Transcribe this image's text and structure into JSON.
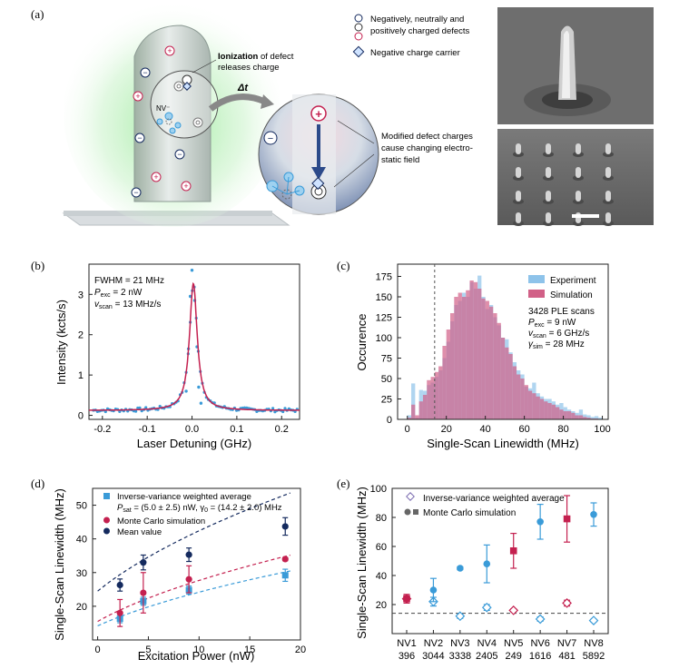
{
  "panel_labels": {
    "a": "(a)",
    "b": "(b)",
    "c": "(c)",
    "d": "(d)",
    "e": "(e)"
  },
  "panel_a": {
    "legend": [
      "Negatively, neutrally and",
      "positively charged defects",
      "Negative charge carrier"
    ],
    "callout_1": [
      "Ionization of defect",
      "releases charge"
    ],
    "callout_1_bold": "Ionization",
    "callout_2": [
      "Modified defect charges",
      "cause changing electro-",
      "static field"
    ],
    "delta_t": "Δt",
    "nv_label": "NV⁻"
  },
  "chart_data": [
    {
      "id": "b",
      "type": "scatter",
      "xlabel": "Laser Detuning (GHz)",
      "ylabel": "Intensity (kcts/s)",
      "xlim": [
        -0.23,
        0.24
      ],
      "ylim": [
        -0.1,
        3.75
      ],
      "xticks": [
        "-0.2",
        "-0.1",
        "0.0",
        "0.1",
        "0.2"
      ],
      "yticks": [
        "0",
        "1",
        "2",
        "3"
      ],
      "annotations": [
        "FWHM = 21 MHz",
        "P_exc = 2 nW",
        "v_scan = 13 MHz/s"
      ],
      "fit": {
        "type": "lorentzian",
        "center": 0.003,
        "fwhm": 0.021,
        "amplitude": 3.15,
        "offset": 0.12
      }
    },
    {
      "id": "c",
      "type": "bar",
      "xlabel": "Single-Scan Linewidth (MHz)",
      "ylabel": "Occurence",
      "xlim": [
        -5,
        103
      ],
      "ylim": [
        0,
        190
      ],
      "xticks": [
        "0",
        "20",
        "40",
        "60",
        "80",
        "100"
      ],
      "yticks": [
        "0",
        "25",
        "50",
        "75",
        "100",
        "125",
        "150",
        "175"
      ],
      "bin_width": 2,
      "bin_start": 0,
      "vline": 14,
      "series": [
        {
          "name": "Experiment",
          "color": "#8ec3ea",
          "values": [
            5,
            44,
            2,
            36,
            35,
            42,
            45,
            52,
            60,
            75,
            95,
            120,
            140,
            145,
            155,
            150,
            168,
            160,
            176,
            150,
            135,
            140,
            125,
            115,
            100,
            98,
            82,
            70,
            60,
            55,
            40,
            38,
            45,
            32,
            28,
            25,
            25,
            22,
            18,
            20,
            15,
            12,
            10,
            8,
            12,
            6,
            5,
            3,
            4,
            2
          ]
        },
        {
          "name": "Simulation",
          "color": "#d16087",
          "values": [
            2,
            18,
            5,
            22,
            30,
            48,
            52,
            58,
            65,
            90,
            110,
            130,
            150,
            155,
            150,
            158,
            170,
            168,
            160,
            148,
            145,
            138,
            130,
            118,
            100,
            88,
            80,
            65,
            55,
            50,
            42,
            35,
            32,
            28,
            25,
            22,
            20,
            18,
            15,
            12,
            10,
            10,
            8,
            5,
            5,
            3,
            2,
            1,
            1,
            0
          ]
        }
      ],
      "annotations": [
        "3428 PLE scans",
        "P_exc = 9 nW",
        "v_scan = 6 GHz/s",
        "γ_sim = 28 MHz"
      ]
    },
    {
      "id": "d",
      "type": "scatter",
      "xlabel": "Excitation Power (nW)",
      "ylabel": "Single-Scan Linewidth (MHz)",
      "xlim": [
        -0.5,
        20
      ],
      "ylim": [
        10,
        55
      ],
      "xticks": [
        "0",
        "5",
        "10",
        "15",
        "20"
      ],
      "yticks": [
        "20",
        "30",
        "40",
        "50"
      ],
      "series": [
        {
          "name": "Inverse-variance weighted average",
          "color": "#3a9bd8",
          "marker": "square",
          "x": [
            2.2,
            4.5,
            9.0,
            18.5
          ],
          "y": [
            16.3,
            21.5,
            24.8,
            29.2
          ],
          "err": [
            1.2,
            1.2,
            1.2,
            1.8
          ]
        },
        {
          "name": "Monte Carlo simulation",
          "color": "#c4204f",
          "marker": "circle",
          "x": [
            2.2,
            4.5,
            9.0,
            18.5
          ],
          "y": [
            18.0,
            24.0,
            28.0,
            34.0
          ],
          "err": [
            4.0,
            6.0,
            4.0,
            0.5
          ]
        },
        {
          "name": "Mean value",
          "color": "#142a5e",
          "marker": "circle",
          "x": [
            2.2,
            4.5,
            9.0,
            18.5
          ],
          "y": [
            26.3,
            33.0,
            35.3,
            43.7
          ],
          "err": [
            1.8,
            2.2,
            2.0,
            2.6
          ]
        }
      ],
      "fits": [
        {
          "color": "#3a9bd8",
          "p_sat": 5.0,
          "gamma0": 14.2,
          "scale": 1.0
        },
        {
          "color": "#c4204f",
          "p_sat": 5.0,
          "gamma0": 15.5,
          "scale": 1.15
        },
        {
          "color": "#142a5e",
          "p_sat": 5.0,
          "gamma0": 24.5,
          "scale": 1.05
        }
      ],
      "fit_legend": "P_sat = (5.0 ± 2.5) nW, γ_0 = (14.2 ± 2.0) MHz"
    },
    {
      "id": "e",
      "type": "scatter",
      "ylabel": "Single-Scan Linewidth (MHz)",
      "ylim": [
        0,
        100
      ],
      "yticks": [
        "20",
        "40",
        "60",
        "80",
        "100"
      ],
      "hline": 14,
      "categories": [
        "NV1",
        "NV2",
        "NV3",
        "NV4",
        "NV5",
        "NV6",
        "NV7",
        "NV8"
      ],
      "subcategories": [
        "396",
        "3044",
        "3338",
        "2405",
        "249",
        "1616",
        "481",
        "5892"
      ],
      "colors": [
        "#c4204f",
        "#3a9bd8",
        "#3a9bd8",
        "#3a9bd8",
        "#c4204f",
        "#3a9bd8",
        "#c4204f",
        "#3a9bd8"
      ],
      "series": [
        {
          "name": "Inverse-variance weighted average",
          "marker": "diamond",
          "values": [
            24,
            22,
            12,
            18,
            16,
            10,
            21,
            9
          ],
          "err": [
            2,
            3,
            1.5,
            2,
            1,
            1.5,
            2,
            1
          ]
        },
        {
          "name": "Monte Carlo simulation",
          "marker": "circle-square",
          "values": [
            24,
            30,
            45,
            48,
            57,
            77,
            79,
            82
          ],
          "err": [
            3,
            8,
            1,
            13,
            12,
            12,
            16,
            8
          ]
        }
      ]
    }
  ]
}
